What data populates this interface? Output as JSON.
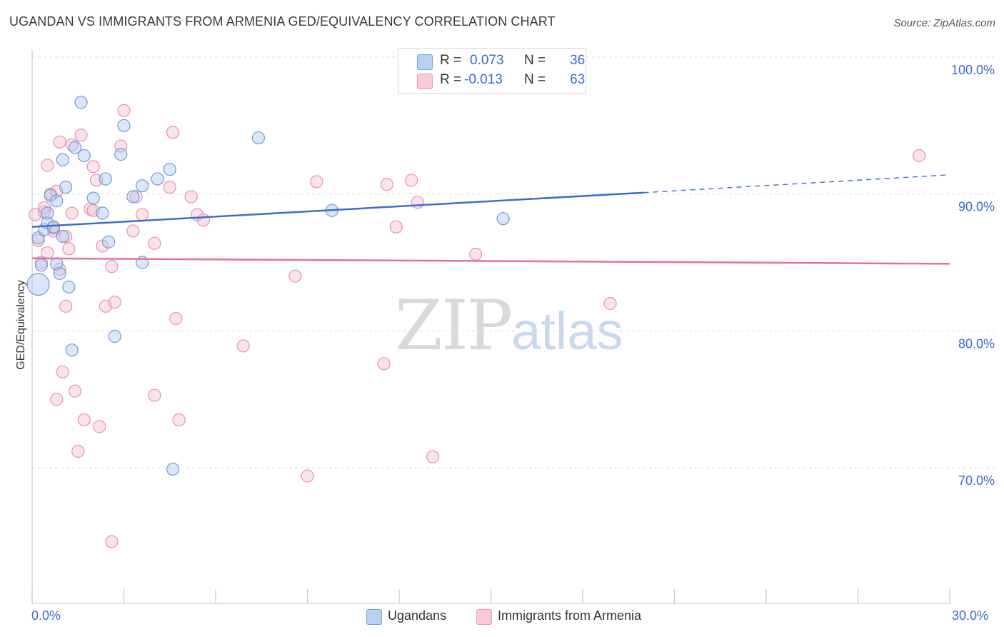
{
  "title": "UGANDAN VS IMMIGRANTS FROM ARMENIA GED/EQUIVALENCY CORRELATION CHART",
  "source": "Source: ZipAtlas.com",
  "watermark": {
    "zip": "ZIP",
    "atlas": "atlas"
  },
  "legend": {
    "blue": {
      "r_label": "R =",
      "r_value": "0.073",
      "n_label": "N =",
      "n_value": "36"
    },
    "pink": {
      "r_label": "R =",
      "r_value": "-0.013",
      "n_label": "N =",
      "n_value": "63"
    }
  },
  "bottom_legend": {
    "blue": "Ugandans",
    "pink": "Immigrants from Armenia"
  },
  "axis": {
    "ylabel": "GED/Equivalency",
    "x_min_label": "0.0%",
    "x_max_label": "30.0%",
    "y_ticks": [
      "100.0%",
      "90.0%",
      "80.0%",
      "70.0%"
    ]
  },
  "colors": {
    "blue_fill": "#aec9f0",
    "blue_stroke": "#6f9ad8",
    "blue_line": "#3a6fc9",
    "pink_fill": "#f7c0d2",
    "pink_stroke": "#ea8fae",
    "pink_line": "#e5709a",
    "tick_text": "#3a6cc5",
    "grid": "#dddddd"
  },
  "chart_data": {
    "type": "scatter",
    "title": "UGANDAN VS IMMIGRANTS FROM ARMENIA GED/EQUIVALENCY CORRELATION CHART",
    "xlabel": "",
    "ylabel": "GED/Equivalency",
    "xlim": [
      0,
      30
    ],
    "ylim": [
      62,
      104
    ],
    "y_ticks": [
      70,
      80,
      90,
      100
    ],
    "grid": true,
    "legend_position": "top-center",
    "series": [
      {
        "name": "Ugandans",
        "trend": {
          "x0": 0,
          "y0": 87.6,
          "x1": 20,
          "y1": 90.1,
          "dashed_to_x": 30,
          "dashed_to_y": 91.4
        },
        "points": [
          [
            0.2,
            83.4,
            1.8
          ],
          [
            0.2,
            86.8,
            1
          ],
          [
            0.3,
            84.8,
            1
          ],
          [
            0.4,
            87.4,
            1
          ],
          [
            0.5,
            87.9,
            1
          ],
          [
            0.5,
            88.6,
            1
          ],
          [
            0.6,
            89.9,
            1
          ],
          [
            0.7,
            87.6,
            1
          ],
          [
            0.8,
            84.9,
            1
          ],
          [
            0.8,
            89.5,
            1
          ],
          [
            0.9,
            84.2,
            1
          ],
          [
            1.0,
            92.5,
            1
          ],
          [
            1.0,
            86.9,
            1
          ],
          [
            1.1,
            90.5,
            1
          ],
          [
            1.2,
            83.2,
            1
          ],
          [
            1.3,
            78.6,
            1
          ],
          [
            1.4,
            93.4,
            1
          ],
          [
            1.6,
            96.7,
            1
          ],
          [
            1.7,
            92.8,
            1
          ],
          [
            2.0,
            89.7,
            1
          ],
          [
            2.3,
            88.6,
            1
          ],
          [
            2.4,
            91.1,
            1
          ],
          [
            2.5,
            86.5,
            1
          ],
          [
            2.7,
            79.6,
            1
          ],
          [
            2.9,
            92.9,
            1
          ],
          [
            3.0,
            95.0,
            1
          ],
          [
            3.3,
            89.8,
            1
          ],
          [
            3.6,
            85.0,
            1
          ],
          [
            3.6,
            90.6,
            1
          ],
          [
            4.1,
            91.1,
            1
          ],
          [
            4.5,
            91.8,
            1
          ],
          [
            4.6,
            69.9,
            1
          ],
          [
            7.4,
            94.1,
            1
          ],
          [
            9.8,
            88.8,
            1
          ],
          [
            15.4,
            88.2,
            1
          ]
        ]
      },
      {
        "name": "Immigrants from Armenia",
        "trend": {
          "x0": 0,
          "y0": 85.3,
          "x1": 30,
          "y1": 84.9
        },
        "points": [
          [
            0.1,
            88.5,
            1
          ],
          [
            0.2,
            86.6,
            1
          ],
          [
            0.3,
            85.0,
            1
          ],
          [
            0.4,
            88.7,
            1
          ],
          [
            0.4,
            89.0,
            1
          ],
          [
            0.5,
            85.7,
            1
          ],
          [
            0.5,
            92.1,
            1
          ],
          [
            0.6,
            90.0,
            1
          ],
          [
            0.7,
            87.3,
            1
          ],
          [
            0.7,
            87.5,
            1
          ],
          [
            0.8,
            75.0,
            1
          ],
          [
            0.8,
            90.2,
            1
          ],
          [
            0.9,
            84.5,
            1
          ],
          [
            0.9,
            93.8,
            1
          ],
          [
            1.0,
            77.0,
            1
          ],
          [
            1.1,
            81.8,
            1
          ],
          [
            1.2,
            86.0,
            1
          ],
          [
            1.1,
            86.9,
            1
          ],
          [
            1.3,
            88.6,
            1
          ],
          [
            1.3,
            93.6,
            1
          ],
          [
            1.4,
            75.6,
            1
          ],
          [
            1.5,
            71.2,
            1
          ],
          [
            1.6,
            94.3,
            1
          ],
          [
            1.7,
            73.5,
            1
          ],
          [
            1.9,
            88.9,
            1
          ],
          [
            2.0,
            88.8,
            1
          ],
          [
            2.0,
            92.0,
            1
          ],
          [
            2.1,
            91.0,
            1
          ],
          [
            2.2,
            73.0,
            1
          ],
          [
            2.3,
            86.2,
            1
          ],
          [
            2.4,
            81.8,
            1
          ],
          [
            2.6,
            84.7,
            1
          ],
          [
            2.6,
            64.6,
            1
          ],
          [
            2.7,
            82.1,
            1
          ],
          [
            2.9,
            93.5,
            1
          ],
          [
            3.0,
            96.1,
            1
          ],
          [
            3.3,
            87.3,
            1
          ],
          [
            3.4,
            89.8,
            1
          ],
          [
            3.6,
            88.5,
            1
          ],
          [
            4.0,
            75.3,
            1
          ],
          [
            4.0,
            86.4,
            1
          ],
          [
            4.5,
            90.5,
            1
          ],
          [
            4.6,
            94.5,
            1
          ],
          [
            4.7,
            80.9,
            1
          ],
          [
            4.8,
            73.5,
            1
          ],
          [
            5.2,
            89.8,
            1
          ],
          [
            5.4,
            88.5,
            1
          ],
          [
            5.6,
            88.1,
            1
          ],
          [
            6.9,
            78.9,
            1
          ],
          [
            8.6,
            84.0,
            1
          ],
          [
            9.0,
            69.4,
            1
          ],
          [
            9.3,
            90.9,
            1
          ],
          [
            11.5,
            77.6,
            1
          ],
          [
            11.6,
            90.7,
            1
          ],
          [
            11.9,
            87.6,
            1
          ],
          [
            12.4,
            91.0,
            1
          ],
          [
            12.6,
            89.4,
            1
          ],
          [
            13.1,
            70.8,
            1
          ],
          [
            14.5,
            85.6,
            1
          ],
          [
            18.9,
            82.0,
            1
          ],
          [
            29.0,
            92.8,
            1
          ]
        ]
      }
    ]
  }
}
